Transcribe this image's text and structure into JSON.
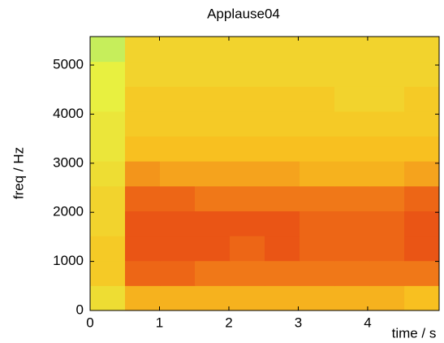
{
  "chart_data": {
    "type": "heatmap",
    "title": "Applause04",
    "x_label": "time / s",
    "y_label": "freq / Hz",
    "xlim": [
      0,
      5.03
    ],
    "ylim": [
      0,
      5580
    ],
    "xticks": [
      0,
      1,
      2,
      3,
      4
    ],
    "yticks": [
      0,
      1000,
      2000,
      3000,
      4000,
      5000
    ],
    "colormap": [
      "#40e8c8",
      "#e8f040",
      "#f8c020",
      "#f07818",
      "#e02010"
    ],
    "values": [
      [
        0.35,
        0.55,
        0.55,
        0.55,
        0.55,
        0.55,
        0.55,
        0.55,
        0.55,
        0.5
      ],
      [
        0.45,
        0.8,
        0.8,
        0.75,
        0.75,
        0.75,
        0.75,
        0.75,
        0.75,
        0.75
      ],
      [
        0.45,
        0.85,
        0.85,
        0.85,
        0.8,
        0.85,
        0.8,
        0.8,
        0.8,
        0.85
      ],
      [
        0.4,
        0.85,
        0.85,
        0.85,
        0.85,
        0.85,
        0.8,
        0.8,
        0.8,
        0.85
      ],
      [
        0.4,
        0.8,
        0.8,
        0.75,
        0.75,
        0.75,
        0.75,
        0.75,
        0.75,
        0.8
      ],
      [
        0.35,
        0.65,
        0.6,
        0.6,
        0.6,
        0.6,
        0.55,
        0.55,
        0.55,
        0.6
      ],
      [
        0.3,
        0.5,
        0.5,
        0.5,
        0.5,
        0.5,
        0.5,
        0.5,
        0.5,
        0.5
      ],
      [
        0.3,
        0.45,
        0.45,
        0.45,
        0.45,
        0.45,
        0.45,
        0.45,
        0.45,
        0.45
      ],
      [
        0.25,
        0.45,
        0.45,
        0.45,
        0.45,
        0.45,
        0.45,
        0.4,
        0.4,
        0.45
      ],
      [
        0.25,
        0.4,
        0.4,
        0.4,
        0.4,
        0.4,
        0.4,
        0.4,
        0.4,
        0.4
      ],
      [
        0.2,
        0.4,
        0.4,
        0.4,
        0.4,
        0.4,
        0.4,
        0.4,
        0.4,
        0.4
      ]
    ]
  }
}
